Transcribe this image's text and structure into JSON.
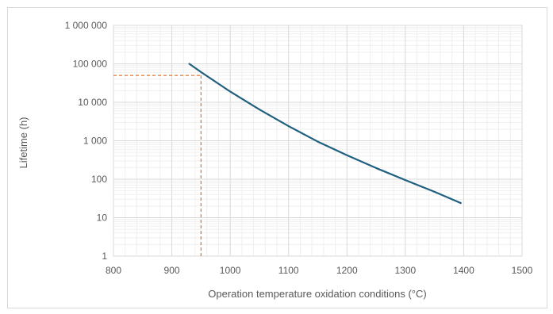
{
  "chart_data": {
    "type": "line",
    "title": "",
    "xlabel": "Operation temperature oxidation conditions (°C)",
    "ylabel": "Lifetime (h)",
    "xlim": [
      800,
      1500
    ],
    "ylim": [
      1,
      1000000
    ],
    "yscale": "log",
    "grid": true,
    "x_ticks": [
      800,
      900,
      1000,
      1100,
      1200,
      1300,
      1400,
      1500
    ],
    "x_tick_labels": [
      "800",
      "900",
      "1000",
      "1100",
      "1200",
      "1300",
      "1400",
      "1500"
    ],
    "y_ticks": [
      1,
      10,
      100,
      1000,
      10000,
      100000,
      1000000
    ],
    "y_tick_labels": [
      "1",
      "10",
      "100",
      "1 000",
      "10 000",
      "100 000",
      "1 000 000"
    ],
    "series": [
      {
        "color": "#1f5f7f",
        "points": [
          {
            "x": 930,
            "y": 100000
          },
          {
            "x": 950,
            "y": 61000
          },
          {
            "x": 1000,
            "y": 19000
          },
          {
            "x": 1050,
            "y": 6500
          },
          {
            "x": 1100,
            "y": 2400
          },
          {
            "x": 1150,
            "y": 950
          },
          {
            "x": 1200,
            "y": 420
          },
          {
            "x": 1250,
            "y": 195
          },
          {
            "x": 1300,
            "y": 95
          },
          {
            "x": 1350,
            "y": 47
          },
          {
            "x": 1395,
            "y": 24
          }
        ]
      }
    ],
    "reference_point": {
      "x": 950,
      "y": 50000,
      "color": "#e07b39",
      "style": "dashed"
    }
  }
}
